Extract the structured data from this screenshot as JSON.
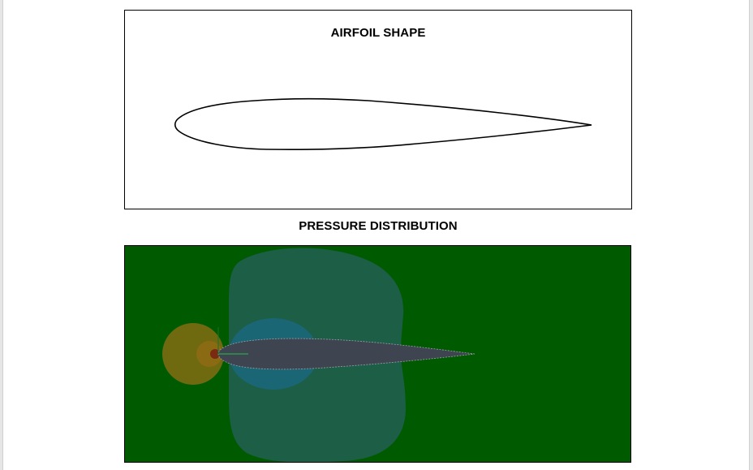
{
  "document": {
    "airfoil_figure": {
      "title": "AIRFOIL SHAPE"
    },
    "pressure_section": {
      "heading": "PRESSURE DISTRIBUTION"
    }
  },
  "colors": {
    "page_background": "#ffffff",
    "outer_background": "#e6e6e6",
    "airfoil_outline": "#000000",
    "field_background": "#005a00",
    "low_pressure_zone": "#1d5f4a",
    "suction_core": "#1b6674",
    "stagnation_outer": "#6f6a10",
    "stagnation_inner": "#8a6a12",
    "stagnation_point": "#7a2a10",
    "airfoil_body": "#3e4450"
  }
}
